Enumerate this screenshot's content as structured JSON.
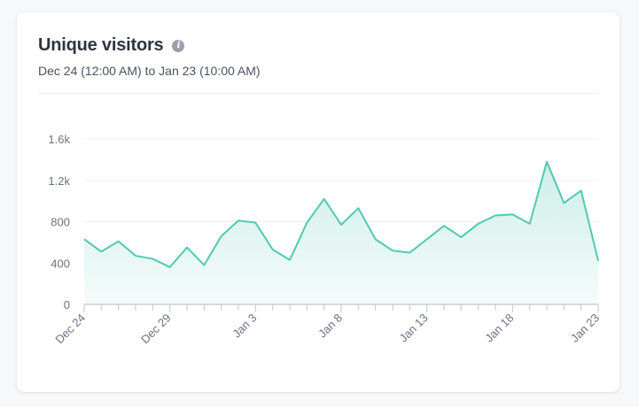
{
  "card": {
    "title": "Unique visitors",
    "info_icon": "info-icon",
    "subtitle": "Dec 24 (12:00 AM) to Jan 23 (10:00 AM)"
  },
  "colors": {
    "line": "#4fc9b4",
    "area_top": "#cdeee8",
    "area_bottom": "#f5fcfb",
    "grid": "#eef0f3",
    "axis": "#c9ced6"
  },
  "chart_data": {
    "type": "area",
    "x": [
      "Dec 24",
      "Dec 25",
      "Dec 26",
      "Dec 27",
      "Dec 28",
      "Dec 29",
      "Dec 30",
      "Dec 31",
      "Jan 1",
      "Jan 2",
      "Jan 3",
      "Jan 4",
      "Jan 5",
      "Jan 6",
      "Jan 7",
      "Jan 8",
      "Jan 9",
      "Jan 10",
      "Jan 11",
      "Jan 12",
      "Jan 13",
      "Jan 14",
      "Jan 15",
      "Jan 16",
      "Jan 17",
      "Jan 18",
      "Jan 19",
      "Jan 20",
      "Jan 21",
      "Jan 22",
      "Jan 23"
    ],
    "series": [
      {
        "values": [
          630,
          510,
          610,
          470,
          440,
          360,
          550,
          380,
          660,
          810,
          790,
          530,
          430,
          790,
          1020,
          770,
          930,
          630,
          520,
          500,
          630,
          760,
          650,
          780,
          860,
          870,
          780,
          1380,
          980,
          1100,
          420
        ]
      }
    ],
    "xtick_labels": [
      "Dec 24",
      "Dec 29",
      "Jan 3",
      "Jan 8",
      "Jan 13",
      "Jan 18",
      "Jan 23"
    ],
    "xtick_indices": [
      0,
      5,
      10,
      15,
      20,
      25,
      30
    ],
    "yticks": [
      0,
      400,
      800,
      1200,
      1600
    ],
    "ytick_labels": [
      "0",
      "400",
      "800",
      "1.2k",
      "1.6k"
    ],
    "ylim": [
      0,
      1600
    ],
    "grid": true,
    "xlabel": "",
    "ylabel": ""
  }
}
